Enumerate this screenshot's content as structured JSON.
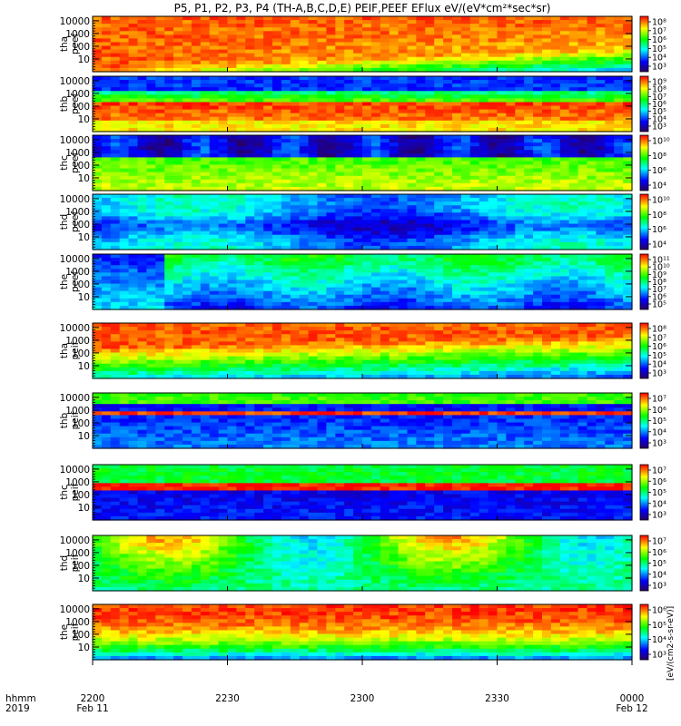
{
  "chart_data": {
    "type": "heatmap",
    "title": "P5, P1, P2, P3, P4 (TH-A,B,C,D,E) PEIF,PEEF EFlux eV/(eV*cm²*sec*sr)",
    "x_label_row1": "hhmm",
    "x_label_row2": "2019",
    "x_ticks": [
      {
        "label": "2200",
        "sub": "Feb 11"
      },
      {
        "label": "2230",
        "sub": ""
      },
      {
        "label": "2300",
        "sub": ""
      },
      {
        "label": "2330",
        "sub": ""
      },
      {
        "label": "0000",
        "sub": "Feb 12"
      }
    ],
    "x_range": [
      "2019-02-11 22:00",
      "2019-02-12 00:00"
    ],
    "y_scale": "log",
    "y_range": [
      5,
      30000
    ],
    "y_ticks": [
      "10000",
      "1000",
      "100",
      "10"
    ],
    "colorbar_label": "[eV/(cm2-s-sr-eV)]",
    "colorbar_axis_text": "eV/(eV*cm^2*sec*sr)",
    "colormap": [
      "#2a0060",
      "#0000ff",
      "#00ffff",
      "#00ff00",
      "#ffff00",
      "#ff0000"
    ],
    "panels": [
      {
        "id": "tha_peef",
        "label": [
          "tha",
          "peef"
        ],
        "cbar_ticks": [
          "10⁸",
          "10⁷",
          "10⁶",
          "10⁵",
          "10⁴",
          "10³"
        ]
      },
      {
        "id": "thb_peef",
        "label": [
          "thb",
          "peef"
        ],
        "cbar_ticks": [
          "10⁹",
          "10⁸",
          "10⁷",
          "10⁶",
          "10⁵",
          "10⁴",
          "10³"
        ]
      },
      {
        "id": "thc_peef",
        "label": [
          "thc",
          "peef"
        ],
        "cbar_ticks": [
          "10¹⁰",
          "10⁸",
          "10⁶",
          "10⁴"
        ]
      },
      {
        "id": "thd_peef",
        "label": [
          "thd",
          "peef"
        ],
        "cbar_ticks": [
          "10¹⁰",
          "10⁸",
          "10⁶",
          "10⁴"
        ]
      },
      {
        "id": "the_peef",
        "label": [
          "the",
          "peef"
        ],
        "cbar_ticks": [
          "10¹¹",
          "10¹⁰",
          "10⁹",
          "10⁸",
          "10⁷",
          "10⁶",
          "10⁵"
        ]
      },
      {
        "id": "tha_peif",
        "label": [
          "tha",
          "peif"
        ],
        "cbar_ticks": [
          "10⁸",
          "10⁷",
          "10⁶",
          "10⁵",
          "10⁴",
          "10³"
        ]
      },
      {
        "id": "thb_peif",
        "label": [
          "thb",
          "peif"
        ],
        "cbar_ticks": [
          "10⁷",
          "10⁶",
          "10⁵",
          "10⁴",
          "10³"
        ]
      },
      {
        "id": "thc_peif",
        "label": [
          "thc",
          "peif"
        ],
        "cbar_ticks": [
          "10⁷",
          "10⁶",
          "10⁵",
          "10⁴",
          "10³"
        ]
      },
      {
        "id": "thd_peif",
        "label": [
          "thd",
          "peif"
        ],
        "cbar_ticks": [
          "10⁷",
          "10⁶",
          "10⁵",
          "10⁴",
          "10³"
        ]
      },
      {
        "id": "the_peif",
        "label": [
          "the",
          "peif"
        ],
        "cbar_ticks": [
          "10⁶",
          "10⁵",
          "10⁴",
          "10³"
        ]
      }
    ]
  }
}
